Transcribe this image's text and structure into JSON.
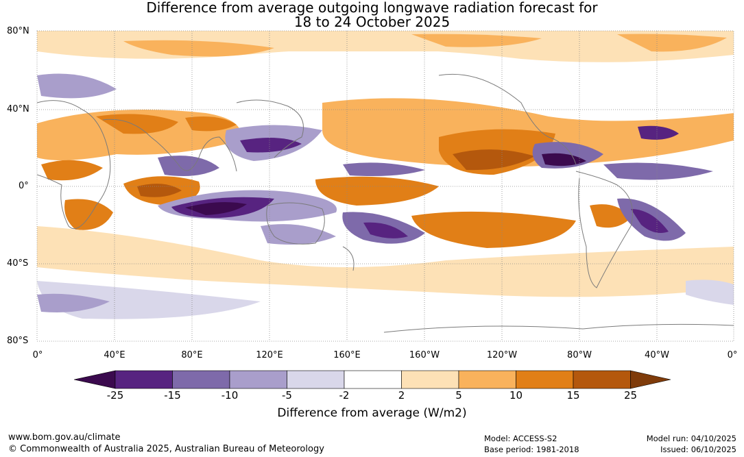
{
  "title": {
    "line1": "Difference from average outgoing longwave radiation forecast for",
    "line2": "18 to 24 October 2025"
  },
  "axes": {
    "lat_labels": [
      "80°N",
      "40°N",
      "0°",
      "40°S",
      "80°S"
    ],
    "lon_labels": [
      "0°",
      "40°E",
      "80°E",
      "120°E",
      "160°E",
      "160°W",
      "120°W",
      "80°W",
      "40°W",
      "0°"
    ]
  },
  "colorbar": {
    "ticks": [
      "-25",
      "-15",
      "-10",
      "-5",
      "-2",
      "2",
      "5",
      "10",
      "15",
      "25"
    ],
    "colors": [
      "#3b0a4e",
      "#572380",
      "#7e6aaa",
      "#a99ecb",
      "#d9d7ea",
      "#ffffff",
      "#fde1b6",
      "#f9b25c",
      "#e17f17",
      "#b4580d",
      "#7f3b0a"
    ],
    "label": "Difference from average (W/m2)"
  },
  "map_colors": {
    "ocean_neutral": "#ffffff",
    "coast": "#7a7a7a",
    "grid": "#888888"
  },
  "footer": {
    "website": "www.bom.gov.au/climate",
    "copyright": "© Commonwealth of Australia 2025, Australian Bureau of Meteorology",
    "model": "Model: ACCESS-S2",
    "base_period": "Base period: 1981-2018",
    "model_run": "Model run: 04/10/2025",
    "issued": "Issued: 06/10/2025"
  }
}
